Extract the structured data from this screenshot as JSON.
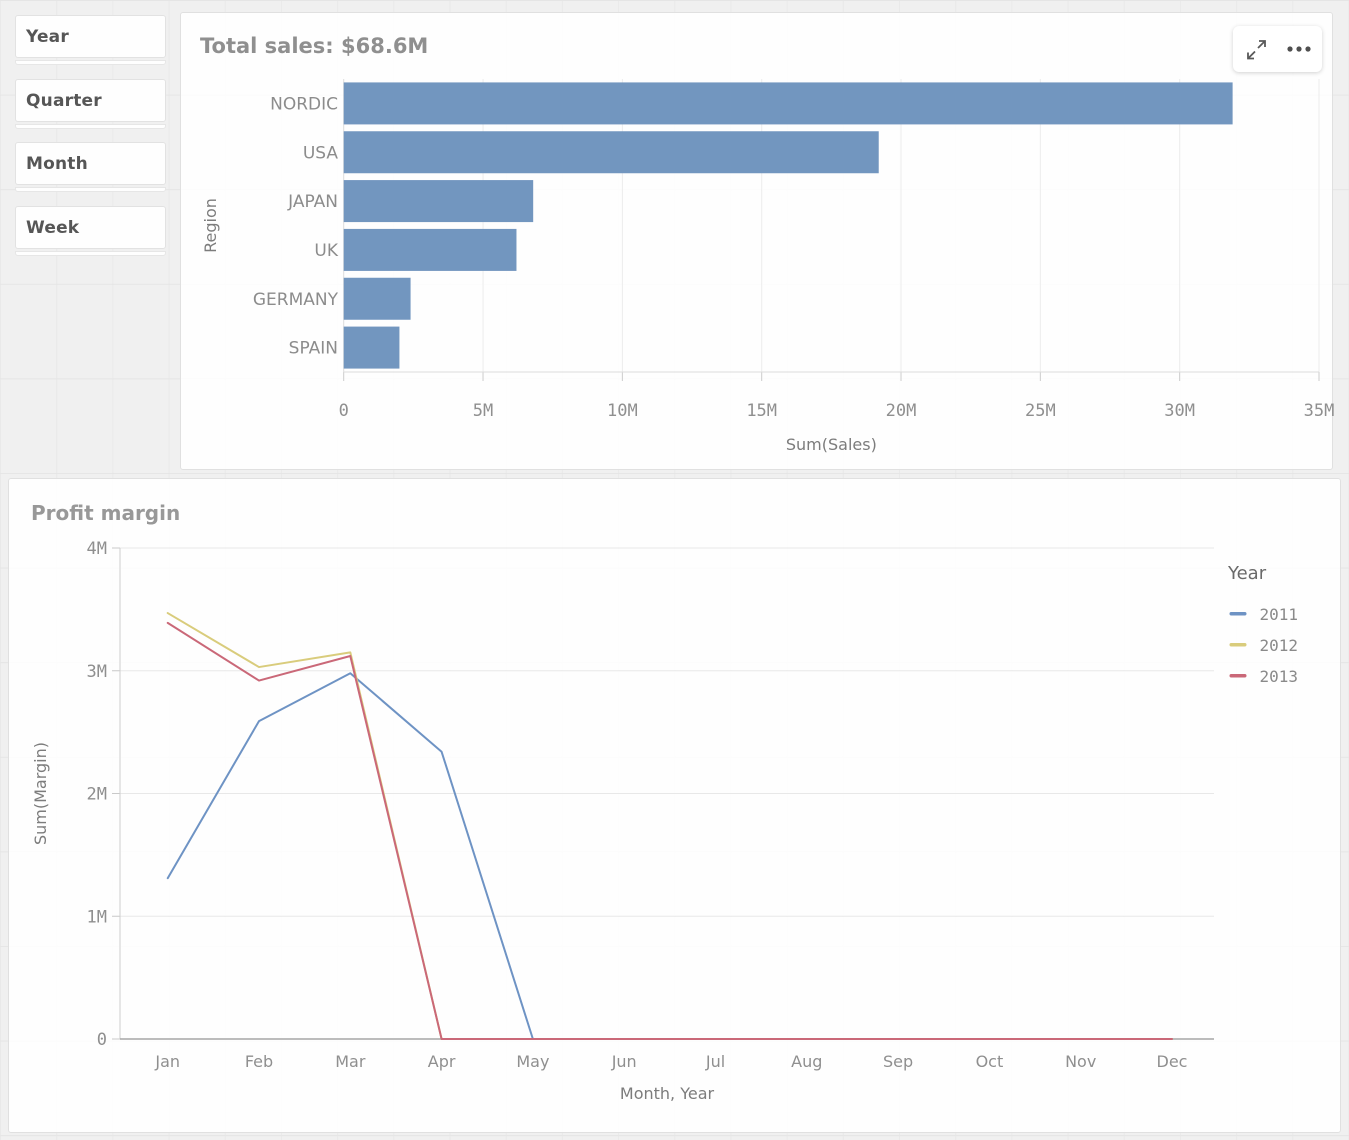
{
  "filters": {
    "items": [
      {
        "label": "Year"
      },
      {
        "label": "Quarter"
      },
      {
        "label": "Month"
      },
      {
        "label": "Week"
      }
    ]
  },
  "toolbar": {
    "icons": [
      "expand-icon",
      "more-options-icon"
    ]
  },
  "chart_data": [
    {
      "type": "bar",
      "orientation": "horizontal",
      "title": "Total sales: $68.6M",
      "categories": [
        "NORDIC",
        "USA",
        "JAPAN",
        "UK",
        "GERMANY",
        "SPAIN"
      ],
      "values": [
        31.9,
        19.2,
        6.8,
        6.2,
        2.4,
        2.0
      ],
      "value_unit": "M",
      "xlabel": "Sum(Sales)",
      "ylabel": "Region",
      "xlim": [
        0,
        35
      ],
      "xticks": {
        "values": [
          0,
          5,
          10,
          15,
          20,
          25,
          30,
          35
        ],
        "labels": [
          "0",
          "5M",
          "10M",
          "15M",
          "20M",
          "25M",
          "30M",
          "35M"
        ]
      },
      "bar_color": "#7296bf",
      "grid": true
    },
    {
      "type": "line",
      "title": "Profit margin",
      "categories": [
        "Jan",
        "Feb",
        "Mar",
        "Apr",
        "May",
        "Jun",
        "Jul",
        "Aug",
        "Sep",
        "Oct",
        "Nov",
        "Dec"
      ],
      "series": [
        {
          "name": "2011",
          "color": "#6e93c4",
          "values": [
            1.31,
            2.59,
            2.98,
            2.34,
            0,
            0,
            0,
            0,
            0,
            0,
            0,
            0
          ]
        },
        {
          "name": "2012",
          "color": "#d9cc7c",
          "values": [
            3.47,
            3.03,
            3.15,
            0,
            0,
            0,
            0,
            0,
            0,
            0,
            0,
            0
          ]
        },
        {
          "name": "2013",
          "color": "#ca6878",
          "values": [
            3.39,
            2.92,
            3.12,
            0,
            0,
            0,
            0,
            0,
            0,
            0,
            0,
            0
          ]
        }
      ],
      "xlabel": "Month, Year",
      "ylabel": "Sum(Margin)",
      "ylim": [
        0,
        4
      ],
      "yticks": {
        "values": [
          0,
          1,
          2,
          3,
          4
        ],
        "labels": [
          "0",
          "1M",
          "2M",
          "3M",
          "4M"
        ]
      },
      "legend_title": "Year",
      "legend_position": "right",
      "grid": true
    }
  ]
}
